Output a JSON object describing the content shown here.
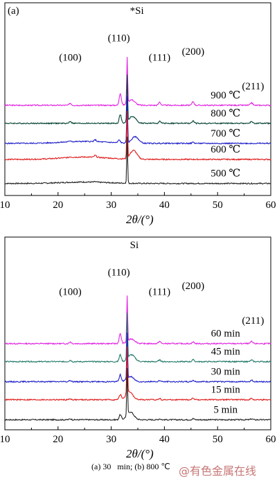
{
  "chart_data": [
    {
      "type": "line",
      "panel_label": "(a)",
      "xlabel": "2θ/(°)",
      "ylabel": "",
      "xlim": [
        10,
        60
      ],
      "xticks": [
        "10",
        "20",
        "30",
        "40",
        "50",
        "60"
      ],
      "grid": false,
      "peaks": [
        {
          "label": "(100)",
          "x": 22.3
        },
        {
          "label": "(110)",
          "x": 31.7
        },
        {
          "label": "(111)",
          "x": 39.1
        },
        {
          "label": "(200)",
          "x": 45.4
        },
        {
          "label": "(211)",
          "x": 56.4
        },
        {
          "label": "*Si",
          "x": 33.0
        }
      ],
      "series": [
        {
          "name": "900 ℃",
          "color": "#e020e0",
          "baseline": 0.9,
          "amorphous": 0.0,
          "peaks": [
            [
              22.3,
              0.09
            ],
            [
              31.7,
              0.52
            ],
            [
              33.0,
              2.0
            ],
            [
              33.8,
              0.24
            ],
            [
              39.1,
              0.14
            ],
            [
              45.4,
              0.16
            ],
            [
              56.4,
              0.11
            ]
          ]
        },
        {
          "name": "800 ℃",
          "color": "#004030",
          "baseline": 0.72,
          "amorphous": 0.0,
          "peaks": [
            [
              22.3,
              0.09
            ],
            [
              31.7,
              0.38
            ],
            [
              33.0,
              2.0
            ],
            [
              34.0,
              0.3
            ],
            [
              39.1,
              0.09
            ],
            [
              45.4,
              0.1
            ],
            [
              56.4,
              0.08
            ]
          ]
        },
        {
          "name": "700 ℃",
          "color": "#1a1ac8",
          "baseline": 0.52,
          "amorphous": 0.04,
          "peaks": [
            [
              22.3,
              0.05
            ],
            [
              27.0,
              0.08
            ],
            [
              31.5,
              0.12
            ],
            [
              33.0,
              2.0
            ],
            [
              34.5,
              0.28
            ],
            [
              45.4,
              0.05
            ]
          ]
        },
        {
          "name": "600 ℃",
          "color": "#e01818",
          "baseline": 0.36,
          "amorphous": 0.05,
          "peaks": [
            [
              22.3,
              0.03
            ],
            [
              27.0,
              0.08
            ],
            [
              33.0,
              2.0
            ],
            [
              34.2,
              0.38
            ]
          ]
        },
        {
          "name": "500 ℃",
          "color": "#202020",
          "baseline": 0.12,
          "amorphous": 0.03,
          "peaks": [
            [
              27.0,
              0.02
            ],
            [
              33.0,
              2.0
            ]
          ]
        }
      ]
    },
    {
      "type": "line",
      "panel_label": "",
      "xlabel": "2θ/(°)",
      "ylabel": "",
      "xlim": [
        10,
        60
      ],
      "xticks": [
        "10",
        "20",
        "30",
        "40",
        "50",
        "60"
      ],
      "grid": false,
      "peaks": [
        {
          "label": "(100)",
          "x": 22.3
        },
        {
          "label": "(110)",
          "x": 31.7
        },
        {
          "label": "(111)",
          "x": 39.1
        },
        {
          "label": "(200)",
          "x": 45.4
        },
        {
          "label": "(211)",
          "x": 56.4
        },
        {
          "label": "Si",
          "x": 33.0
        }
      ],
      "series": [
        {
          "name": "60 min",
          "color": "#e020e0",
          "baseline": 0.86,
          "amorphous": 0.0,
          "peaks": [
            [
              22.3,
              0.07
            ],
            [
              31.7,
              0.42
            ],
            [
              33.0,
              2.0
            ],
            [
              33.8,
              0.2
            ],
            [
              39.1,
              0.1
            ],
            [
              45.4,
              0.07
            ],
            [
              56.4,
              0.09
            ]
          ]
        },
        {
          "name": "45 min",
          "color": "#207868",
          "baseline": 0.68,
          "amorphous": 0.0,
          "peaks": [
            [
              22.3,
              0.06
            ],
            [
              31.7,
              0.3
            ],
            [
              33.0,
              2.0
            ],
            [
              33.8,
              0.3
            ],
            [
              39.1,
              0.07
            ],
            [
              45.4,
              0.08
            ],
            [
              56.4,
              0.07
            ]
          ]
        },
        {
          "name": "30 min",
          "color": "#1a1ac8",
          "baseline": 0.48,
          "amorphous": 0.0,
          "peaks": [
            [
              22.3,
              0.05
            ],
            [
              31.7,
              0.3
            ],
            [
              33.0,
              2.0
            ],
            [
              33.6,
              0.22
            ],
            [
              39.1,
              0.05
            ],
            [
              45.4,
              0.06
            ],
            [
              56.4,
              0.06
            ]
          ]
        },
        {
          "name": "15 min",
          "color": "#e01818",
          "baseline": 0.3,
          "amorphous": 0.0,
          "peaks": [
            [
              22.3,
              0.04
            ],
            [
              31.7,
              0.22
            ],
            [
              33.0,
              2.0
            ],
            [
              33.4,
              0.34
            ],
            [
              39.1,
              0.05
            ],
            [
              45.4,
              0.07
            ],
            [
              56.4,
              0.06
            ]
          ]
        },
        {
          "name": "5 min",
          "color": "#202020",
          "baseline": 0.1,
          "amorphous": 0.0,
          "peaks": [
            [
              22.3,
              0.04
            ],
            [
              31.7,
              0.22
            ],
            [
              33.0,
              2.0
            ],
            [
              33.6,
              0.34
            ],
            [
              39.1,
              0.04
            ],
            [
              45.4,
              0.05
            ],
            [
              56.4,
              0.04
            ]
          ]
        }
      ]
    }
  ],
  "caption": "(a) 30   min; (b) 800 ℃",
  "watermark": "@有色金属在线"
}
